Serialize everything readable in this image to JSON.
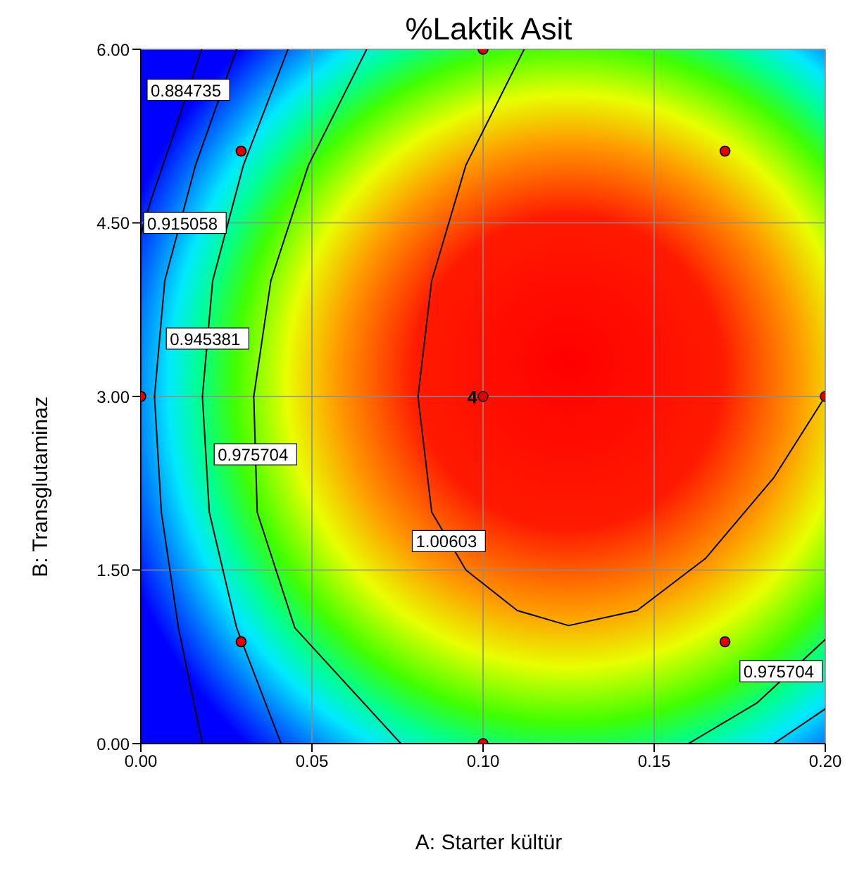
{
  "chart_data": {
    "type": "scatter",
    "title": "%Laktik Asit",
    "xlabel": "A: Starter kültür",
    "ylabel": "B: Transglutaminaz",
    "xlim": [
      0,
      0.2
    ],
    "xticks": [
      {
        "value": 0,
        "label": "0.00"
      },
      {
        "value": 0.05,
        "label": "0.05"
      },
      {
        "value": 0.1,
        "label": "0.10"
      },
      {
        "value": 0.15,
        "label": "0.15"
      },
      {
        "value": 0.2,
        "label": "0.20"
      }
    ],
    "ylim": [
      0,
      6
    ],
    "yticks": [
      {
        "value": 0,
        "label": "0.00"
      },
      {
        "value": 1.5,
        "label": "1.50"
      },
      {
        "value": 3,
        "label": "3.00"
      },
      {
        "value": 4.5,
        "label": "4.50"
      },
      {
        "value": 6,
        "label": "6.00"
      }
    ],
    "grid": true,
    "marker": "circle",
    "series": [
      {
        "color": "#e00000",
        "x": [
          0,
          0.0293,
          0.0293,
          0.1,
          0.1,
          0.1,
          0.1707,
          0.1707,
          0.2
        ],
        "values": [
          3,
          5.12,
          0.88,
          6,
          3,
          0,
          5.12,
          0.88,
          3
        ]
      },
      {
        "type": "line",
        "name": "0.884735",
        "marker": "none",
        "color": "#000000",
        "x": [
          0.0178,
          0.01,
          0.003,
          0
        ],
        "values": [
          6,
          5.3,
          4.7,
          4.4
        ]
      },
      {
        "type": "line",
        "name": "0.915058",
        "marker": "none",
        "color": "#000000",
        "x": [
          0.028,
          0.016,
          0.007,
          0.004,
          0.006,
          0.011,
          0.018
        ],
        "values": [
          6,
          5,
          4,
          3,
          2,
          1,
          0
        ]
      },
      {
        "type": "line",
        "name": "0.945381",
        "marker": "none",
        "color": "#000000",
        "x": [
          0.043,
          0.03,
          0.021,
          0.018,
          0.02,
          0.028,
          0.041
        ],
        "values": [
          6,
          5,
          4,
          3,
          2,
          1,
          0
        ]
      },
      {
        "type": "line",
        "name": "0.975704",
        "marker": "none",
        "color": "#000000",
        "x": [
          0.066,
          0.049,
          0.038,
          0.033,
          0.034,
          0.045,
          0.076
        ],
        "values": [
          6,
          5,
          4,
          3,
          2,
          1,
          0
        ]
      },
      {
        "type": "line",
        "name": "1.00603",
        "marker": "none",
        "color": "#000000",
        "x": [
          0.112,
          0.095,
          0.085,
          0.081,
          0.085,
          0.095,
          0.11,
          0.125,
          0.145,
          0.165,
          0.185,
          0.2
        ],
        "values": [
          6,
          5,
          4,
          3,
          2,
          1.5,
          1.15,
          1.02,
          1.15,
          1.6,
          2.3,
          3
        ]
      },
      {
        "type": "line",
        "name": "0.975704",
        "marker": "none",
        "color": "#000000",
        "x": [
          0.16,
          0.18,
          0.2
        ],
        "values": [
          0,
          0.35,
          0.9
        ]
      },
      {
        "type": "line",
        "marker": "none",
        "color": "#000000",
        "x": [
          0.185,
          0.2
        ],
        "values": [
          0,
          0.3
        ]
      }
    ],
    "annotations": [
      {
        "text": "4",
        "x": 0.1,
        "y": 3
      }
    ]
  }
}
